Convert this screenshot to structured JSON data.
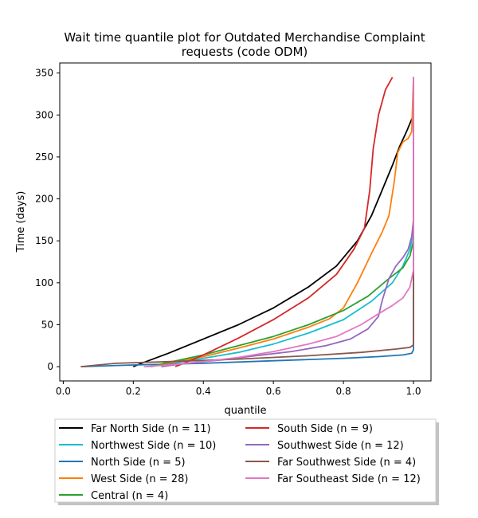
{
  "chart_data": {
    "type": "line",
    "title": "Wait time quantile plot for Outdated Merchandise Complaint",
    "title_line2": "requests (code ODM)",
    "xlabel": "quantile",
    "ylabel": "Time (days)",
    "xlim": [
      -0.01,
      1.05
    ],
    "ylim": [
      -17,
      362
    ],
    "xticks": [
      0.0,
      0.2,
      0.4,
      0.6,
      0.8,
      1.0
    ],
    "xtick_labels": [
      "0.0",
      "0.2",
      "0.4",
      "0.6",
      "0.8",
      "1.0"
    ],
    "yticks": [
      0,
      50,
      100,
      150,
      200,
      250,
      300,
      350
    ],
    "ytick_labels": [
      "0",
      "50",
      "100",
      "150",
      "200",
      "250",
      "300",
      "350"
    ],
    "grid": false,
    "legend_position": "below",
    "series": [
      {
        "name": "Far North Side (n = 11)",
        "color": "#000000",
        "points": [
          [
            0.2,
            0
          ],
          [
            0.23,
            5
          ],
          [
            0.3,
            16
          ],
          [
            0.4,
            33
          ],
          [
            0.5,
            50
          ],
          [
            0.6,
            70
          ],
          [
            0.7,
            95
          ],
          [
            0.78,
            120
          ],
          [
            0.84,
            150
          ],
          [
            0.88,
            180
          ],
          [
            0.91,
            210
          ],
          [
            0.94,
            240
          ],
          [
            0.96,
            262
          ],
          [
            0.98,
            280
          ],
          [
            0.99,
            290
          ],
          [
            1.0,
            300
          ],
          [
            1.0,
            345
          ]
        ]
      },
      {
        "name": "Northwest Side (n = 10)",
        "color": "#17becf",
        "points": [
          [
            0.24,
            0
          ],
          [
            0.3,
            3
          ],
          [
            0.4,
            10
          ],
          [
            0.5,
            17
          ],
          [
            0.6,
            27
          ],
          [
            0.7,
            40
          ],
          [
            0.8,
            56
          ],
          [
            0.88,
            78
          ],
          [
            0.94,
            100
          ],
          [
            0.97,
            120
          ],
          [
            0.99,
            140
          ],
          [
            1.0,
            160
          ],
          [
            1.0,
            345
          ]
        ]
      },
      {
        "name": "North Side (n = 5)",
        "color": "#1f77b4",
        "points": [
          [
            0.05,
            0
          ],
          [
            0.2,
            2
          ],
          [
            0.4,
            4
          ],
          [
            0.6,
            7
          ],
          [
            0.8,
            10
          ],
          [
            0.9,
            12
          ],
          [
            0.97,
            14
          ],
          [
            0.995,
            16
          ],
          [
            1.0,
            20
          ],
          [
            1.0,
            345
          ]
        ]
      },
      {
        "name": "West Side (n = 28)",
        "color": "#ff7f0e",
        "points": [
          [
            0.25,
            0
          ],
          [
            0.3,
            4
          ],
          [
            0.4,
            12
          ],
          [
            0.5,
            22
          ],
          [
            0.6,
            33
          ],
          [
            0.7,
            47
          ],
          [
            0.76,
            57
          ],
          [
            0.8,
            70
          ],
          [
            0.84,
            100
          ],
          [
            0.88,
            135
          ],
          [
            0.91,
            160
          ],
          [
            0.93,
            180
          ],
          [
            0.945,
            220
          ],
          [
            0.955,
            255
          ],
          [
            0.97,
            268
          ],
          [
            0.985,
            272
          ],
          [
            0.995,
            280
          ],
          [
            1.0,
            345
          ]
        ]
      },
      {
        "name": "Central (n = 4)",
        "color": "#2ca02c",
        "points": [
          [
            0.25,
            0
          ],
          [
            0.3,
            5
          ],
          [
            0.4,
            14
          ],
          [
            0.5,
            25
          ],
          [
            0.6,
            36
          ],
          [
            0.7,
            50
          ],
          [
            0.8,
            67
          ],
          [
            0.87,
            84
          ],
          [
            0.93,
            105
          ],
          [
            0.97,
            118
          ],
          [
            0.99,
            132
          ],
          [
            1.0,
            150
          ],
          [
            1.0,
            345
          ]
        ]
      },
      {
        "name": "South Side (n = 9)",
        "color": "#d62728",
        "points": [
          [
            0.32,
            0
          ],
          [
            0.35,
            5
          ],
          [
            0.4,
            14
          ],
          [
            0.5,
            34
          ],
          [
            0.6,
            56
          ],
          [
            0.7,
            82
          ],
          [
            0.78,
            110
          ],
          [
            0.83,
            140
          ],
          [
            0.86,
            165
          ],
          [
            0.875,
            210
          ],
          [
            0.885,
            260
          ],
          [
            0.9,
            300
          ],
          [
            0.92,
            330
          ],
          [
            0.94,
            345
          ]
        ]
      },
      {
        "name": "Southwest Side (n = 12)",
        "color": "#9467bd",
        "points": [
          [
            0.28,
            0
          ],
          [
            0.35,
            4
          ],
          [
            0.45,
            8
          ],
          [
            0.55,
            13
          ],
          [
            0.65,
            18
          ],
          [
            0.75,
            25
          ],
          [
            0.82,
            33
          ],
          [
            0.87,
            45
          ],
          [
            0.9,
            60
          ],
          [
            0.91,
            78
          ],
          [
            0.93,
            105
          ],
          [
            0.95,
            120
          ],
          [
            0.97,
            130
          ],
          [
            0.985,
            140
          ],
          [
            0.995,
            155
          ],
          [
            1.0,
            175
          ],
          [
            1.0,
            345
          ]
        ]
      },
      {
        "name": "Far Southwest Side (n = 4)",
        "color": "#8c564b",
        "points": [
          [
            0.05,
            0
          ],
          [
            0.15,
            4
          ],
          [
            0.3,
            6
          ],
          [
            0.5,
            9
          ],
          [
            0.7,
            13
          ],
          [
            0.85,
            17
          ],
          [
            0.95,
            21
          ],
          [
            0.99,
            23
          ],
          [
            1.0,
            26
          ],
          [
            1.0,
            115
          ]
        ]
      },
      {
        "name": "Far Southeast Side (n = 12)",
        "color": "#e377c2",
        "points": [
          [
            0.23,
            0
          ],
          [
            0.3,
            2
          ],
          [
            0.4,
            6
          ],
          [
            0.5,
            11
          ],
          [
            0.6,
            18
          ],
          [
            0.7,
            27
          ],
          [
            0.78,
            36
          ],
          [
            0.85,
            50
          ],
          [
            0.9,
            63
          ],
          [
            0.94,
            73
          ],
          [
            0.97,
            82
          ],
          [
            0.99,
            95
          ],
          [
            1.0,
            115
          ],
          [
            1.0,
            345
          ]
        ]
      }
    ]
  }
}
